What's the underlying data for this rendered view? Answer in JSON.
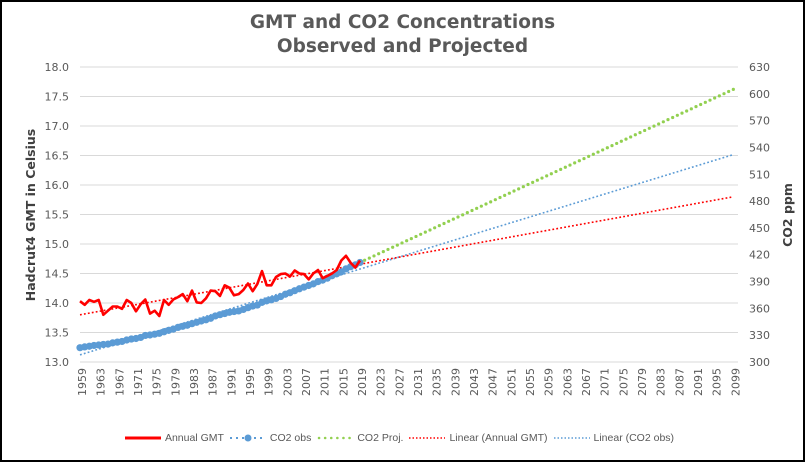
{
  "chart_data": {
    "type": "line",
    "title": "GMT and CO2 Concentrations",
    "subtitle": "Observed and Projected",
    "xlabel": "",
    "ylabel": "Hadcrut4 GMT in Celsius",
    "y2label": "CO2 ppm",
    "x_range": [
      1959,
      2100
    ],
    "x_tick_labels": [
      "1959",
      "1963",
      "1967",
      "1971",
      "1975",
      "1979",
      "1983",
      "1987",
      "1991",
      "1995",
      "1999",
      "2003",
      "2007",
      "2011",
      "2015",
      "2019",
      "2023",
      "2027",
      "2031",
      "2035",
      "2039",
      "2043",
      "2047",
      "2051",
      "2055",
      "2059",
      "2063",
      "2067",
      "2071",
      "2075",
      "2079",
      "2083",
      "2087",
      "2091",
      "2095",
      "2099"
    ],
    "ylim": [
      13.0,
      18.0
    ],
    "y_tick_labels": [
      "13.0",
      "13.5",
      "14.0",
      "14.5",
      "15.0",
      "15.5",
      "16.0",
      "16.5",
      "17.0",
      "17.5",
      "18.0"
    ],
    "y2lim": [
      300,
      630
    ],
    "y2_tick_labels": [
      "300",
      "330",
      "360",
      "390",
      "420",
      "450",
      "480",
      "510",
      "540",
      "570",
      "600",
      "630"
    ],
    "grid": true,
    "legend_position": "bottom",
    "series": [
      {
        "name": "Annual GMT",
        "axis": "left",
        "color": "#ff0000",
        "style": "solid",
        "x": [
          1959,
          1960,
          1961,
          1962,
          1963,
          1964,
          1965,
          1966,
          1967,
          1968,
          1969,
          1970,
          1971,
          1972,
          1973,
          1974,
          1975,
          1976,
          1977,
          1978,
          1979,
          1980,
          1981,
          1982,
          1983,
          1984,
          1985,
          1986,
          1987,
          1988,
          1989,
          1990,
          1991,
          1992,
          1993,
          1994,
          1995,
          1996,
          1997,
          1998,
          1999,
          2000,
          2001,
          2002,
          2003,
          2004,
          2005,
          2006,
          2007,
          2008,
          2009,
          2010,
          2011,
          2012,
          2013,
          2014,
          2015,
          2016,
          2017,
          2018,
          2019
        ],
        "values": [
          14.03,
          13.97,
          14.05,
          14.02,
          14.05,
          13.8,
          13.87,
          13.94,
          13.94,
          13.9,
          14.05,
          14.0,
          13.86,
          13.98,
          14.06,
          13.82,
          13.87,
          13.78,
          14.05,
          13.97,
          14.06,
          14.1,
          14.15,
          14.03,
          14.21,
          14.01,
          14.0,
          14.08,
          14.21,
          14.2,
          14.12,
          14.3,
          14.26,
          14.13,
          14.15,
          14.22,
          14.33,
          14.2,
          14.32,
          14.54,
          14.3,
          14.3,
          14.44,
          14.49,
          14.5,
          14.45,
          14.55,
          14.5,
          14.49,
          14.4,
          14.5,
          14.56,
          14.42,
          14.46,
          14.5,
          14.56,
          14.72,
          14.8,
          14.68,
          14.6,
          14.72
        ]
      },
      {
        "name": "CO2 obs",
        "axis": "right",
        "color": "#5b9bd5",
        "style": "dotted-markers",
        "x_start": 1959,
        "x_end": 2019,
        "values": [
          316.0,
          316.9,
          317.6,
          318.5,
          319.0,
          319.6,
          320.0,
          321.4,
          322.2,
          323.0,
          324.6,
          325.7,
          326.3,
          327.5,
          329.7,
          330.2,
          331.1,
          332.1,
          333.8,
          335.4,
          336.8,
          338.7,
          339.9,
          341.1,
          342.9,
          344.4,
          345.9,
          347.2,
          348.9,
          351.5,
          352.9,
          354.2,
          355.6,
          356.4,
          357.1,
          358.8,
          360.8,
          362.6,
          363.7,
          366.7,
          368.4,
          369.6,
          371.1,
          373.2,
          375.8,
          377.5,
          379.8,
          381.9,
          383.8,
          385.6,
          387.4,
          389.9,
          391.6,
          393.8,
          396.5,
          398.6,
          400.8,
          404.2,
          406.6,
          408.7,
          411.4
        ]
      },
      {
        "name": "CO2 Proj.",
        "axis": "right",
        "color": "#92d050",
        "style": "dotted",
        "x_start": 2019,
        "x_end": 2099,
        "values_start": 411.4,
        "values_end": 605.0
      },
      {
        "name": "Linear (Annual GMT)",
        "axis": "left",
        "color": "#ff0000",
        "style": "trendline-dotted",
        "x_start": 1959,
        "x_end": 2099,
        "values_start": 13.8,
        "values_end": 15.8
      },
      {
        "name": "Linear (CO2 obs)",
        "axis": "right",
        "color": "#5b9bd5",
        "style": "trendline-dotted",
        "x_start": 1959,
        "x_end": 2099,
        "values_start": 308.0,
        "values_end": 532.0
      }
    ]
  },
  "legend": {
    "items": [
      {
        "label": "Annual GMT"
      },
      {
        "label": "CO2 obs"
      },
      {
        "label": "CO2 Proj."
      },
      {
        "label": "Linear (Annual GMT)"
      },
      {
        "label": "Linear (CO2 obs)"
      }
    ]
  }
}
